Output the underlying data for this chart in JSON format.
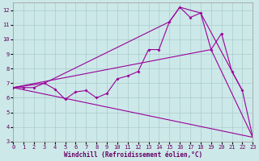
{
  "bg_color": "#cce8e8",
  "grid_color": "#aacccc",
  "line_color": "#990099",
  "xlabel": "Windchill (Refroidissement éolien,°C)",
  "xlim": [
    0,
    23
  ],
  "ylim": [
    3,
    12.5
  ],
  "yticks": [
    3,
    4,
    5,
    6,
    7,
    8,
    9,
    10,
    11,
    12
  ],
  "xticks": [
    0,
    1,
    2,
    3,
    4,
    5,
    6,
    7,
    8,
    9,
    10,
    11,
    12,
    13,
    14,
    15,
    16,
    17,
    18,
    19,
    20,
    21,
    22,
    23
  ],
  "jagged_x": [
    0,
    1,
    2,
    3,
    4,
    5,
    6,
    7,
    8,
    9,
    10,
    11,
    12,
    13,
    14,
    15,
    16,
    17,
    18,
    19,
    20,
    21,
    22
  ],
  "jagged_y": [
    6.7,
    6.7,
    6.7,
    7.0,
    6.6,
    5.9,
    6.4,
    6.5,
    6.0,
    6.3,
    7.3,
    7.5,
    7.8,
    9.3,
    9.3,
    11.2,
    12.2,
    11.5,
    11.8,
    9.3,
    10.4,
    7.8,
    6.5
  ],
  "upper_env_x": [
    0,
    3,
    15,
    16,
    18,
    22,
    23
  ],
  "upper_env_y": [
    6.7,
    7.0,
    11.2,
    12.2,
    11.8,
    6.5,
    3.3
  ],
  "mid_line_x": [
    0,
    19,
    23
  ],
  "mid_line_y": [
    6.7,
    9.3,
    3.3
  ],
  "bot_line_x": [
    0,
    23
  ],
  "bot_line_y": [
    6.7,
    3.3
  ]
}
